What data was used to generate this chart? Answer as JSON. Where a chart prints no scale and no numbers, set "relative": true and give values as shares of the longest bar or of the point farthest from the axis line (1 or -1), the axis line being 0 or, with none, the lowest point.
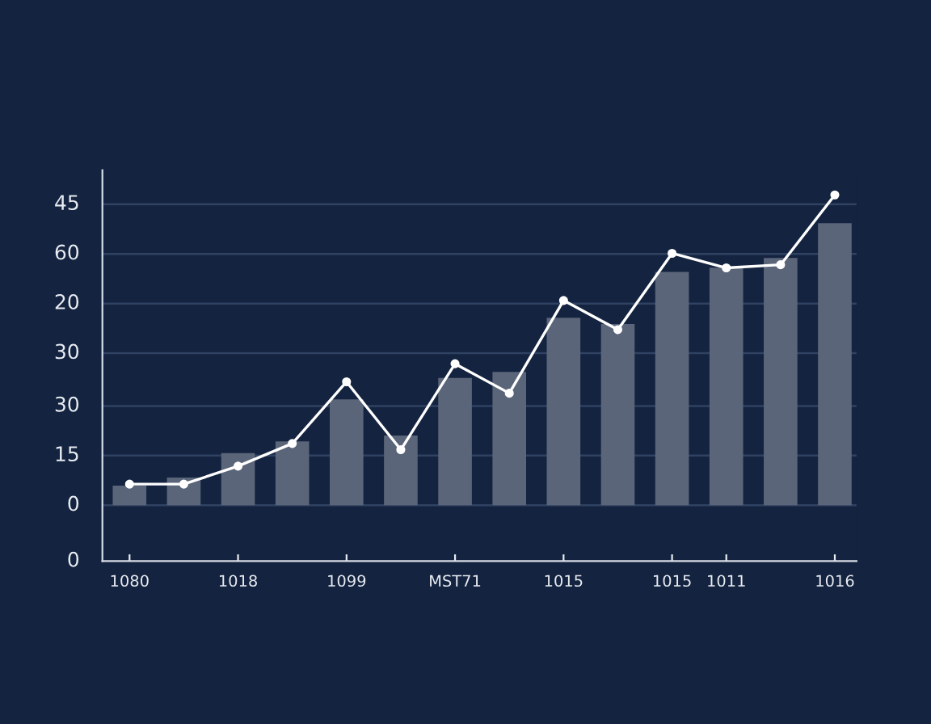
{
  "chart_data": {
    "type": "bar",
    "relative": true,
    "categories": [
      "1080",
      null,
      "1018",
      null,
      "1099",
      null,
      "MST71",
      null,
      "1015",
      null,
      "1015",
      "1011",
      null,
      "1016"
    ],
    "values": [
      0.063,
      0.089,
      0.168,
      0.206,
      0.341,
      0.225,
      0.41,
      0.43,
      0.604,
      0.584,
      0.752,
      0.766,
      0.797,
      0.909
    ],
    "color": "#5b6579",
    "series": [
      {
        "type": "line",
        "color": "#ffffff",
        "marker": "circle",
        "line_style": "solid",
        "values": [
          0.068,
          0.068,
          0.126,
          0.199,
          0.398,
          0.179,
          0.456,
          0.361,
          0.66,
          0.566,
          0.812,
          0.765,
          0.775,
          1
        ]
      }
    ],
    "ref_lines": [
      {
        "axis": "y",
        "value": 0.97,
        "color": "#2f4262"
      },
      {
        "axis": "y",
        "value": 0.81,
        "color": "#2f4262"
      },
      {
        "axis": "y",
        "value": 0.65,
        "color": "#2f4262"
      },
      {
        "axis": "y",
        "value": 0.49,
        "color": "#2f4262"
      },
      {
        "axis": "y",
        "value": 0.32,
        "color": "#2f4262"
      },
      {
        "axis": "y",
        "value": 0.16,
        "color": "#2f4262"
      },
      {
        "axis": "y",
        "value": 0,
        "color": "#2f4262"
      }
    ],
    "annotations": [
      "45",
      "60",
      "20",
      "30",
      "30",
      "15",
      "0",
      "0"
    ]
  }
}
